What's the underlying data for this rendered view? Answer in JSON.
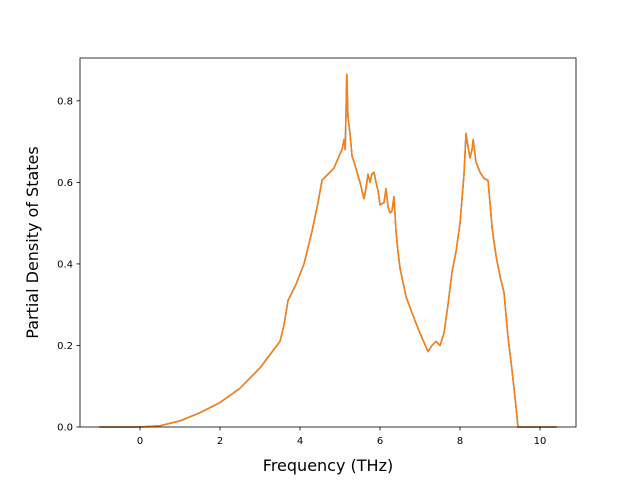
{
  "chart_data": {
    "type": "line",
    "title": "",
    "xlabel": "Frequency (THz)",
    "ylabel": "Partial Density of States",
    "xlim": [
      -1.5,
      10.9
    ],
    "ylim": [
      0.0,
      0.905
    ],
    "xticks": [
      0,
      2,
      4,
      6,
      8,
      10
    ],
    "yticks": [
      0.0,
      0.2,
      0.4,
      0.6,
      0.8
    ],
    "xtick_labels": [
      "0",
      "2",
      "4",
      "6",
      "8",
      "10"
    ],
    "ytick_labels": [
      "0.0",
      "0.2",
      "0.4",
      "0.6",
      "0.8"
    ],
    "grid": false,
    "legend": "none",
    "series": [
      {
        "color": "#1f77b4",
        "x": [
          -1.0,
          0.0,
          0.5,
          1.0,
          1.5,
          2.0,
          2.5,
          3.0,
          3.5,
          3.6,
          3.7,
          3.9,
          4.1,
          4.3,
          4.45,
          4.55,
          4.7,
          4.85,
          5.0,
          5.05,
          5.1,
          5.13,
          5.17,
          5.2,
          5.25,
          5.3,
          5.35,
          5.5,
          5.6,
          5.65,
          5.7,
          5.75,
          5.8,
          5.85,
          5.9,
          5.95,
          6.0,
          6.1,
          6.15,
          6.2,
          6.25,
          6.3,
          6.35,
          6.4,
          6.45,
          6.5,
          6.65,
          6.8,
          7.0,
          7.2,
          7.3,
          7.4,
          7.5,
          7.6,
          7.7,
          7.8,
          7.9,
          8.0,
          8.1,
          8.15,
          8.18,
          8.25,
          8.3,
          8.33,
          8.36,
          8.4,
          8.5,
          8.6,
          8.7,
          8.75,
          8.8,
          8.9,
          9.0,
          9.1,
          9.2,
          9.3,
          9.4,
          9.45,
          9.5,
          10.4
        ],
        "y": [
          0.0,
          0.0,
          0.003,
          0.015,
          0.035,
          0.06,
          0.095,
          0.145,
          0.21,
          0.25,
          0.31,
          0.35,
          0.4,
          0.48,
          0.55,
          0.605,
          0.62,
          0.635,
          0.67,
          0.68,
          0.705,
          0.68,
          0.865,
          0.76,
          0.72,
          0.665,
          0.65,
          0.6,
          0.56,
          0.585,
          0.62,
          0.6,
          0.62,
          0.625,
          0.6,
          0.58,
          0.545,
          0.55,
          0.585,
          0.54,
          0.525,
          0.53,
          0.565,
          0.48,
          0.43,
          0.39,
          0.32,
          0.28,
          0.23,
          0.185,
          0.2,
          0.21,
          0.2,
          0.23,
          0.3,
          0.38,
          0.43,
          0.5,
          0.62,
          0.72,
          0.7,
          0.66,
          0.68,
          0.705,
          0.68,
          0.65,
          0.625,
          0.61,
          0.605,
          0.55,
          0.49,
          0.42,
          0.37,
          0.33,
          0.22,
          0.14,
          0.05,
          0.0,
          0.0,
          0.0
        ]
      },
      {
        "color": "#ff7f0e",
        "x": [
          -1.0,
          0.0,
          0.5,
          1.0,
          1.5,
          2.0,
          2.5,
          3.0,
          3.5,
          3.6,
          3.7,
          3.9,
          4.1,
          4.3,
          4.45,
          4.55,
          4.7,
          4.85,
          5.0,
          5.05,
          5.1,
          5.13,
          5.17,
          5.2,
          5.25,
          5.3,
          5.35,
          5.5,
          5.6,
          5.65,
          5.7,
          5.75,
          5.8,
          5.85,
          5.9,
          5.95,
          6.0,
          6.1,
          6.15,
          6.2,
          6.25,
          6.3,
          6.35,
          6.4,
          6.45,
          6.5,
          6.65,
          6.8,
          7.0,
          7.2,
          7.3,
          7.4,
          7.5,
          7.6,
          7.7,
          7.8,
          7.9,
          8.0,
          8.1,
          8.15,
          8.18,
          8.25,
          8.3,
          8.33,
          8.36,
          8.4,
          8.5,
          8.6,
          8.7,
          8.75,
          8.8,
          8.9,
          9.0,
          9.1,
          9.2,
          9.3,
          9.4,
          9.45,
          9.5,
          10.4
        ],
        "y": [
          0.0,
          0.0,
          0.003,
          0.015,
          0.035,
          0.06,
          0.095,
          0.145,
          0.21,
          0.25,
          0.31,
          0.35,
          0.4,
          0.48,
          0.55,
          0.605,
          0.62,
          0.635,
          0.67,
          0.68,
          0.705,
          0.68,
          0.865,
          0.76,
          0.72,
          0.665,
          0.65,
          0.6,
          0.56,
          0.585,
          0.62,
          0.6,
          0.62,
          0.625,
          0.6,
          0.58,
          0.545,
          0.55,
          0.585,
          0.54,
          0.525,
          0.53,
          0.565,
          0.48,
          0.43,
          0.39,
          0.32,
          0.28,
          0.23,
          0.185,
          0.2,
          0.21,
          0.2,
          0.23,
          0.3,
          0.38,
          0.43,
          0.5,
          0.62,
          0.72,
          0.7,
          0.66,
          0.68,
          0.705,
          0.68,
          0.65,
          0.625,
          0.61,
          0.605,
          0.55,
          0.49,
          0.42,
          0.37,
          0.33,
          0.22,
          0.14,
          0.05,
          0.0,
          0.0,
          0.0
        ]
      }
    ]
  }
}
